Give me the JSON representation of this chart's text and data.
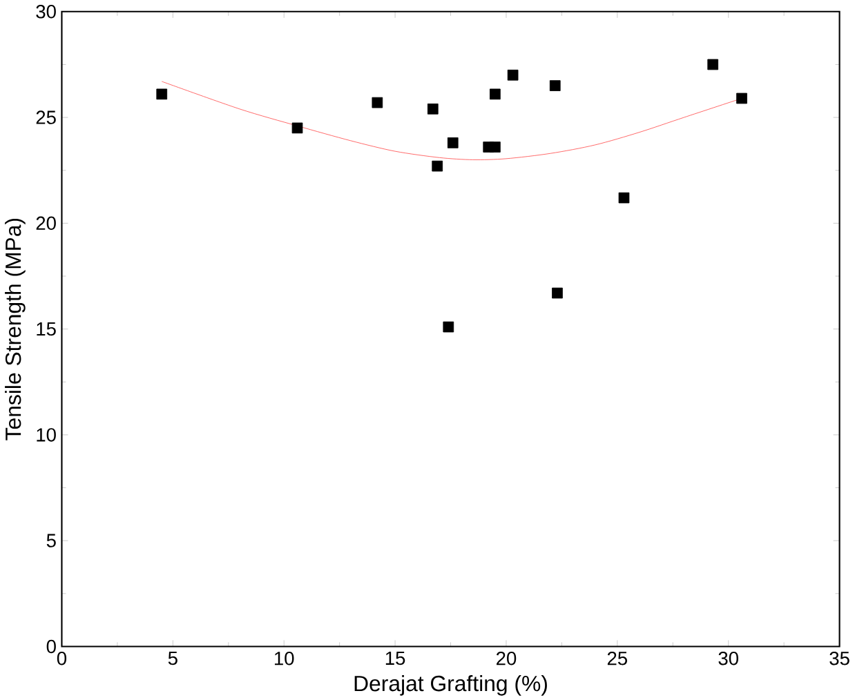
{
  "chart_data": {
    "type": "scatter",
    "xlabel": "Derajat Grafting (%)",
    "ylabel": "Tensile Strength (MPa)",
    "xlim": [
      0,
      35
    ],
    "ylim": [
      0,
      30
    ],
    "xticks": [
      0,
      5,
      10,
      15,
      20,
      25,
      30,
      35
    ],
    "yticks": [
      0,
      5,
      10,
      15,
      20,
      25,
      30
    ],
    "grid": false,
    "marker": "square",
    "series": [
      {
        "color": "#000000",
        "x": [
          4.5,
          10.6,
          14.2,
          16.7,
          16.9,
          17.4,
          17.6,
          19.2,
          19.5,
          19.5,
          20.3,
          22.2,
          22.3,
          25.3,
          29.3,
          30.6
        ],
        "values": [
          26.1,
          24.5,
          25.7,
          25.4,
          22.7,
          15.1,
          23.8,
          23.6,
          23.6,
          26.1,
          27.0,
          26.5,
          16.7,
          21.2,
          27.5,
          25.9
        ]
      },
      {
        "type": "line",
        "color": "#ff5050",
        "marker": "none",
        "x": [
          4.5,
          8,
          10.6,
          13,
          15,
          17,
          18.5,
          20,
          22,
          24,
          26,
          28,
          30.6
        ],
        "values": [
          26.7,
          25.4,
          24.6,
          23.9,
          23.4,
          23.1,
          23.0,
          23.05,
          23.3,
          23.7,
          24.3,
          25.0,
          25.9
        ]
      }
    ]
  }
}
